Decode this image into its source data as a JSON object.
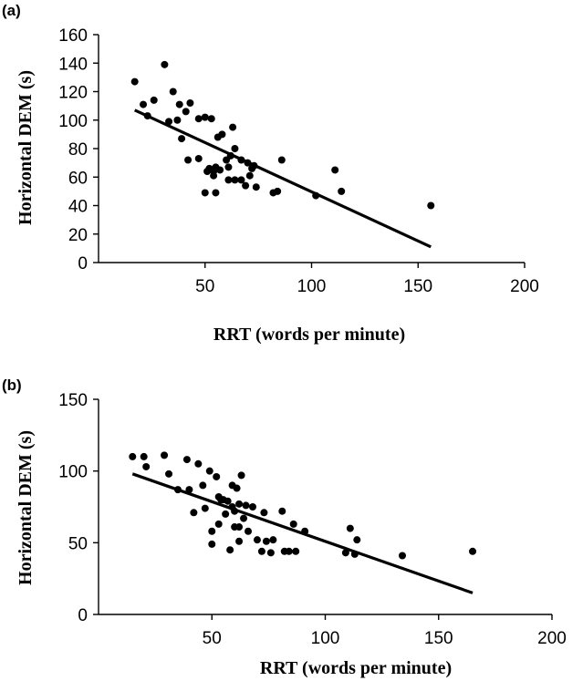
{
  "chart_data": [
    {
      "type": "scatter",
      "panel_label": "(a)",
      "xlabel": "RRT (words per minute)",
      "ylabel": "Horizontal DEM (s)",
      "xlim": [
        0,
        200
      ],
      "ylim": [
        0,
        160
      ],
      "xticks": [
        50,
        100,
        150,
        200
      ],
      "yticks": [
        0,
        20,
        40,
        60,
        80,
        100,
        120,
        140,
        160
      ],
      "xtick_labels": [
        "50",
        "100",
        "150",
        "200"
      ],
      "ytick_labels": [
        "0",
        "20",
        "40",
        "60",
        "80",
        "100",
        "120",
        "140",
        "160"
      ],
      "grid": false,
      "points": [
        [
          17,
          127
        ],
        [
          21,
          111
        ],
        [
          23,
          103
        ],
        [
          26,
          114
        ],
        [
          31,
          139
        ],
        [
          33,
          99
        ],
        [
          35,
          120
        ],
        [
          37,
          100
        ],
        [
          38,
          111
        ],
        [
          39,
          87
        ],
        [
          41,
          106
        ],
        [
          42,
          72
        ],
        [
          43,
          112
        ],
        [
          47,
          101
        ],
        [
          47,
          73
        ],
        [
          50,
          102
        ],
        [
          50,
          49
        ],
        [
          51,
          64
        ],
        [
          52,
          66
        ],
        [
          53,
          101
        ],
        [
          54,
          61
        ],
        [
          54,
          64
        ],
        [
          55,
          67
        ],
        [
          55,
          49
        ],
        [
          56,
          88
        ],
        [
          57,
          65
        ],
        [
          58,
          90
        ],
        [
          60,
          72
        ],
        [
          61,
          58
        ],
        [
          61,
          67
        ],
        [
          62,
          75
        ],
        [
          63,
          95
        ],
        [
          64,
          80
        ],
        [
          64,
          58
        ],
        [
          67,
          72
        ],
        [
          67,
          58
        ],
        [
          69,
          54
        ],
        [
          70,
          70
        ],
        [
          71,
          61
        ],
        [
          72,
          66
        ],
        [
          73,
          68
        ],
        [
          74,
          53
        ],
        [
          82,
          49
        ],
        [
          84,
          50
        ],
        [
          86,
          72
        ],
        [
          102,
          47
        ],
        [
          111,
          65
        ],
        [
          114,
          50
        ],
        [
          156,
          40
        ]
      ],
      "trendline": [
        [
          17,
          107
        ],
        [
          156,
          11
        ]
      ]
    },
    {
      "type": "scatter",
      "panel_label": "(b)",
      "xlabel": "RRT (words per minute)",
      "ylabel": "Horizontal DEM (s)",
      "xlim": [
        0,
        200
      ],
      "ylim": [
        0,
        150
      ],
      "xticks": [
        50,
        100,
        150,
        200
      ],
      "yticks": [
        0,
        50,
        100,
        150
      ],
      "xtick_labels": [
        "50",
        "100",
        "150",
        "200"
      ],
      "ytick_labels": [
        "0",
        "50",
        "100",
        "150"
      ],
      "grid": false,
      "points": [
        [
          15,
          110
        ],
        [
          20,
          110
        ],
        [
          21,
          103
        ],
        [
          29,
          111
        ],
        [
          31,
          98
        ],
        [
          35,
          87
        ],
        [
          39,
          108
        ],
        [
          40,
          87
        ],
        [
          42,
          71
        ],
        [
          44,
          105
        ],
        [
          46,
          90
        ],
        [
          47,
          74
        ],
        [
          49,
          100
        ],
        [
          50,
          58
        ],
        [
          50,
          49
        ],
        [
          52,
          96
        ],
        [
          53,
          82
        ],
        [
          53,
          63
        ],
        [
          54,
          80
        ],
        [
          55,
          80
        ],
        [
          56,
          70
        ],
        [
          57,
          79
        ],
        [
          58,
          45
        ],
        [
          59,
          75
        ],
        [
          59,
          90
        ],
        [
          60,
          61
        ],
        [
          60,
          72
        ],
        [
          61,
          88
        ],
        [
          62,
          51
        ],
        [
          62,
          61
        ],
        [
          62,
          77
        ],
        [
          63,
          97
        ],
        [
          64,
          67
        ],
        [
          65,
          76
        ],
        [
          66,
          58
        ],
        [
          68,
          75
        ],
        [
          70,
          52
        ],
        [
          72,
          44
        ],
        [
          73,
          71
        ],
        [
          74,
          51
        ],
        [
          76,
          43
        ],
        [
          77,
          52
        ],
        [
          81,
          72
        ],
        [
          82,
          44
        ],
        [
          84,
          44
        ],
        [
          86,
          63
        ],
        [
          87,
          44
        ],
        [
          91,
          58
        ],
        [
          109,
          43
        ],
        [
          111,
          60
        ],
        [
          113,
          42
        ],
        [
          114,
          52
        ],
        [
          134,
          41
        ],
        [
          165,
          44
        ]
      ],
      "trendline": [
        [
          15,
          98
        ],
        [
          165,
          15
        ]
      ]
    }
  ]
}
